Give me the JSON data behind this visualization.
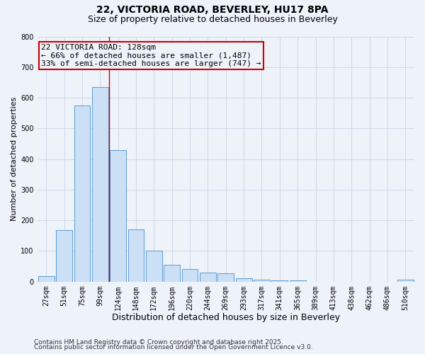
{
  "title1": "22, VICTORIA ROAD, BEVERLEY, HU17 8PA",
  "title2": "Size of property relative to detached houses in Beverley",
  "xlabel": "Distribution of detached houses by size in Beverley",
  "ylabel": "Number of detached properties",
  "bar_labels": [
    "27sqm",
    "51sqm",
    "75sqm",
    "99sqm",
    "124sqm",
    "148sqm",
    "172sqm",
    "196sqm",
    "220sqm",
    "244sqm",
    "269sqm",
    "293sqm",
    "317sqm",
    "341sqm",
    "365sqm",
    "389sqm",
    "413sqm",
    "438sqm",
    "462sqm",
    "486sqm",
    "510sqm"
  ],
  "bar_values": [
    18,
    168,
    575,
    635,
    428,
    170,
    102,
    55,
    40,
    30,
    28,
    12,
    7,
    5,
    5,
    0,
    0,
    0,
    0,
    0,
    7
  ],
  "bar_color": "#cce0f5",
  "bar_edge_color": "#5b9bd5",
  "grid_color": "#d0d8e8",
  "ylim": [
    0,
    800
  ],
  "yticks": [
    0,
    100,
    200,
    300,
    400,
    500,
    600,
    700,
    800
  ],
  "vline_x_index": 4,
  "vline_color": "#cc0000",
  "annotation_line1": "22 VICTORIA ROAD: 128sqm",
  "annotation_line2": "← 66% of detached houses are smaller (1,487)",
  "annotation_line3": "33% of semi-detached houses are larger (747) →",
  "annotation_box_color": "#cc0000",
  "footnote1": "Contains HM Land Registry data © Crown copyright and database right 2025.",
  "footnote2": "Contains public sector information licensed under the Open Government Licence v3.0.",
  "bg_color": "#eef2f9",
  "title1_fontsize": 10,
  "title2_fontsize": 9,
  "annot_fontsize": 8,
  "tick_fontsize": 7,
  "xlabel_fontsize": 9,
  "ylabel_fontsize": 8,
  "footnote_fontsize": 6.5
}
